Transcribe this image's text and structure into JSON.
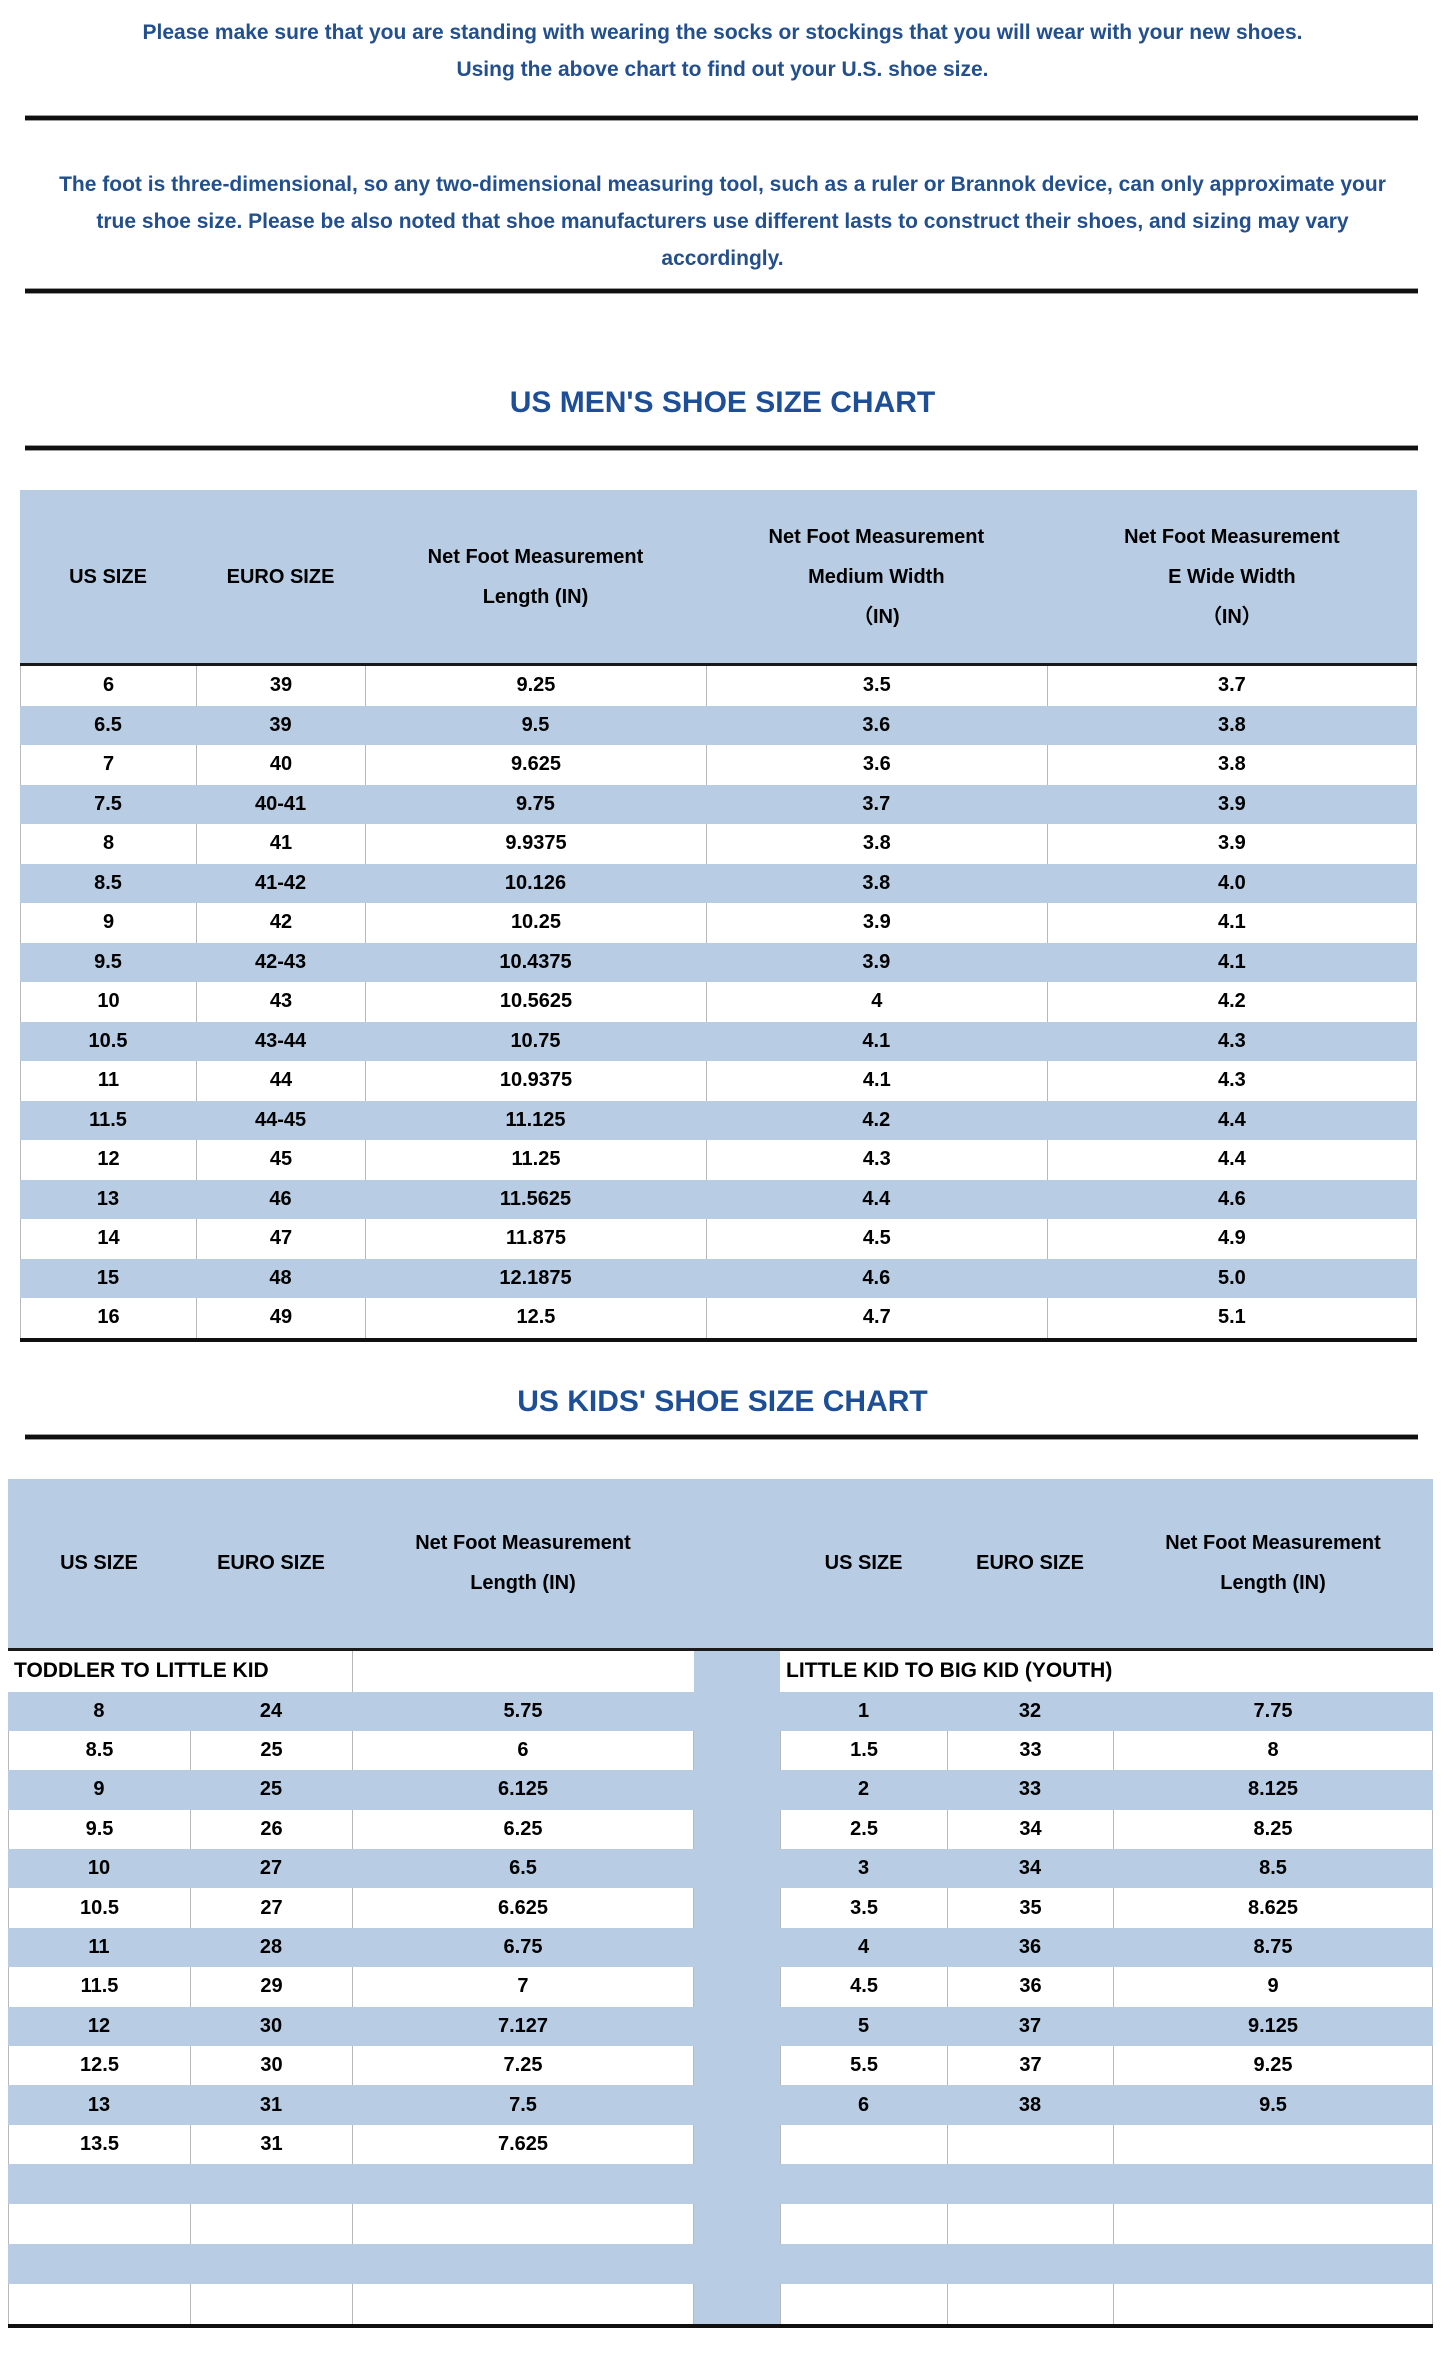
{
  "document": {
    "intro1": "Please make sure that you are standing with wearing the socks or stockings that you will wear with your new shoes.\nUsing the above chart to find out your U.S. shoe size.",
    "intro2": "The foot is three-dimensional, so any two-dimensional measuring tool, such as a ruler or Brannok device, can only approximate your true shoe size. Please be also noted that shoe manufacturers use different lasts to construct their shoes, and sizing may vary accordingly."
  },
  "colors": {
    "row_band_blue": "#b8cce4",
    "paragraph_navy": "#234f8d",
    "title_navy": "#1e4e96",
    "table_text": "#000000",
    "rule_black": "#101010"
  },
  "mens_chart": {
    "title": "US MEN'S SHOE SIZE CHART",
    "columns": [
      "US SIZE",
      "EURO SIZE",
      "Net Foot Measurement\nLength (IN)",
      "Net Foot Measurement\nMedium Width\n（IN)",
      "Net Foot Measurement\nE Wide Width\n（IN）"
    ],
    "rows": [
      [
        "6",
        "39",
        "9.25",
        "3.5",
        "3.7"
      ],
      [
        "6.5",
        "39",
        "9.5",
        "3.6",
        "3.8"
      ],
      [
        "7",
        "40",
        "9.625",
        "3.6",
        "3.8"
      ],
      [
        "7.5",
        "40-41",
        "9.75",
        "3.7",
        "3.9"
      ],
      [
        "8",
        "41",
        "9.9375",
        "3.8",
        "3.9"
      ],
      [
        "8.5",
        "41-42",
        "10.126",
        "3.8",
        "4.0"
      ],
      [
        "9",
        "42",
        "10.25",
        "3.9",
        "4.1"
      ],
      [
        "9.5",
        "42-43",
        "10.4375",
        "3.9",
        "4.1"
      ],
      [
        "10",
        "43",
        "10.5625",
        "4",
        "4.2"
      ],
      [
        "10.5",
        "43-44",
        "10.75",
        "4.1",
        "4.3"
      ],
      [
        "11",
        "44",
        "10.9375",
        "4.1",
        "4.3"
      ],
      [
        "11.5",
        "44-45",
        "11.125",
        "4.2",
        "4.4"
      ],
      [
        "12",
        "45",
        "11.25",
        "4.3",
        "4.4"
      ],
      [
        "13",
        "46",
        "11.5625",
        "4.4",
        "4.6"
      ],
      [
        "14",
        "47",
        "11.875",
        "4.5",
        "4.9"
      ],
      [
        "15",
        "48",
        "12.1875",
        "4.6",
        "5.0"
      ],
      [
        "16",
        "49",
        "12.5",
        "4.7",
        "5.1"
      ]
    ]
  },
  "kids_chart": {
    "title": "US KIDS' SHOE SIZE CHART",
    "columns": [
      "US SIZE",
      "EURO SIZE",
      "Net Foot Measurement\nLength (IN)",
      "US SIZE",
      "EURO SIZE",
      "Net Foot Measurement\nLength (IN)"
    ],
    "section_left": "TODDLER TO LITTLE KID",
    "section_right": "LITTLE KID TO BIG KID (YOUTH)",
    "rows_left": [
      [
        "8",
        "24",
        "5.75"
      ],
      [
        "8.5",
        "25",
        "6"
      ],
      [
        "9",
        "25",
        "6.125"
      ],
      [
        "9.5",
        "26",
        "6.25"
      ],
      [
        "10",
        "27",
        "6.5"
      ],
      [
        "10.5",
        "27",
        "6.625"
      ],
      [
        "11",
        "28",
        "6.75"
      ],
      [
        "11.5",
        "29",
        "7"
      ],
      [
        "12",
        "30",
        "7.127"
      ],
      [
        "12.5",
        "30",
        "7.25"
      ],
      [
        "13",
        "31",
        "7.5"
      ],
      [
        "13.5",
        "31",
        "7.625"
      ]
    ],
    "rows_right": [
      [
        "1",
        "32",
        "7.75"
      ],
      [
        "1.5",
        "33",
        "8"
      ],
      [
        "2",
        "33",
        "8.125"
      ],
      [
        "2.5",
        "34",
        "8.25"
      ],
      [
        "3",
        "34",
        "8.5"
      ],
      [
        "3.5",
        "35",
        "8.625"
      ],
      [
        "4",
        "36",
        "8.75"
      ],
      [
        "4.5",
        "36",
        "9"
      ],
      [
        "5",
        "37",
        "9.125"
      ],
      [
        "5.5",
        "37",
        "9.25"
      ],
      [
        "6",
        "38",
        "9.5"
      ]
    ],
    "trailing_rows": [
      "blue",
      "white",
      "blue",
      "white"
    ]
  }
}
